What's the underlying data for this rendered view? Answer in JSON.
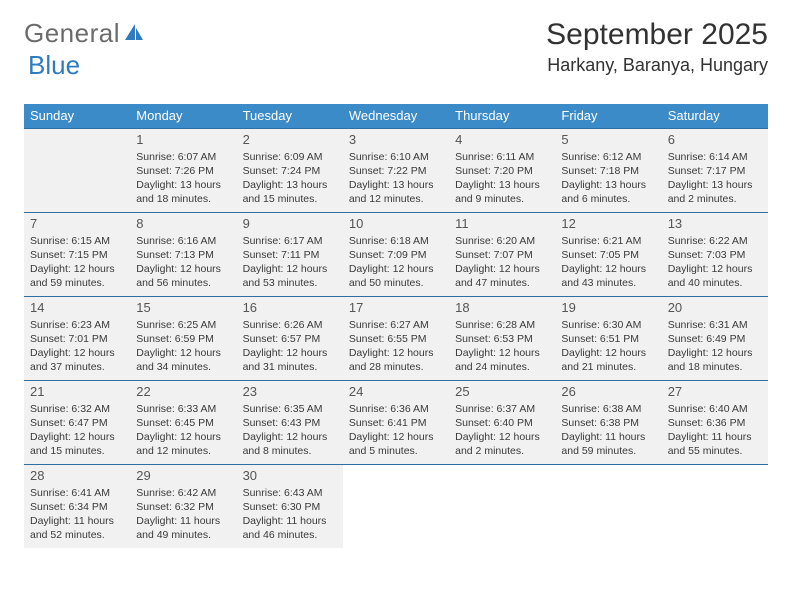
{
  "logo": {
    "part1": "General",
    "part2": "Blue"
  },
  "title": "September 2025",
  "location": "Harkany, Baranya, Hungary",
  "weekdays": [
    "Sunday",
    "Monday",
    "Tuesday",
    "Wednesday",
    "Thursday",
    "Friday",
    "Saturday"
  ],
  "colors": {
    "header_bg": "#3b8bc9",
    "header_text": "#ffffff",
    "cell_bg": "#f1f1f1",
    "rule": "#2f6ea3",
    "text": "#3a3a3a",
    "title_text": "#323232",
    "logo_gray": "#6b6b6b",
    "logo_blue": "#2f7bbf"
  },
  "weeks": [
    [
      null,
      {
        "n": "1",
        "sr": "6:07 AM",
        "ss": "7:26 PM",
        "dl": "13 hours and 18 minutes."
      },
      {
        "n": "2",
        "sr": "6:09 AM",
        "ss": "7:24 PM",
        "dl": "13 hours and 15 minutes."
      },
      {
        "n": "3",
        "sr": "6:10 AM",
        "ss": "7:22 PM",
        "dl": "13 hours and 12 minutes."
      },
      {
        "n": "4",
        "sr": "6:11 AM",
        "ss": "7:20 PM",
        "dl": "13 hours and 9 minutes."
      },
      {
        "n": "5",
        "sr": "6:12 AM",
        "ss": "7:18 PM",
        "dl": "13 hours and 6 minutes."
      },
      {
        "n": "6",
        "sr": "6:14 AM",
        "ss": "7:17 PM",
        "dl": "13 hours and 2 minutes."
      }
    ],
    [
      {
        "n": "7",
        "sr": "6:15 AM",
        "ss": "7:15 PM",
        "dl": "12 hours and 59 minutes."
      },
      {
        "n": "8",
        "sr": "6:16 AM",
        "ss": "7:13 PM",
        "dl": "12 hours and 56 minutes."
      },
      {
        "n": "9",
        "sr": "6:17 AM",
        "ss": "7:11 PM",
        "dl": "12 hours and 53 minutes."
      },
      {
        "n": "10",
        "sr": "6:18 AM",
        "ss": "7:09 PM",
        "dl": "12 hours and 50 minutes."
      },
      {
        "n": "11",
        "sr": "6:20 AM",
        "ss": "7:07 PM",
        "dl": "12 hours and 47 minutes."
      },
      {
        "n": "12",
        "sr": "6:21 AM",
        "ss": "7:05 PM",
        "dl": "12 hours and 43 minutes."
      },
      {
        "n": "13",
        "sr": "6:22 AM",
        "ss": "7:03 PM",
        "dl": "12 hours and 40 minutes."
      }
    ],
    [
      {
        "n": "14",
        "sr": "6:23 AM",
        "ss": "7:01 PM",
        "dl": "12 hours and 37 minutes."
      },
      {
        "n": "15",
        "sr": "6:25 AM",
        "ss": "6:59 PM",
        "dl": "12 hours and 34 minutes."
      },
      {
        "n": "16",
        "sr": "6:26 AM",
        "ss": "6:57 PM",
        "dl": "12 hours and 31 minutes."
      },
      {
        "n": "17",
        "sr": "6:27 AM",
        "ss": "6:55 PM",
        "dl": "12 hours and 28 minutes."
      },
      {
        "n": "18",
        "sr": "6:28 AM",
        "ss": "6:53 PM",
        "dl": "12 hours and 24 minutes."
      },
      {
        "n": "19",
        "sr": "6:30 AM",
        "ss": "6:51 PM",
        "dl": "12 hours and 21 minutes."
      },
      {
        "n": "20",
        "sr": "6:31 AM",
        "ss": "6:49 PM",
        "dl": "12 hours and 18 minutes."
      }
    ],
    [
      {
        "n": "21",
        "sr": "6:32 AM",
        "ss": "6:47 PM",
        "dl": "12 hours and 15 minutes."
      },
      {
        "n": "22",
        "sr": "6:33 AM",
        "ss": "6:45 PM",
        "dl": "12 hours and 12 minutes."
      },
      {
        "n": "23",
        "sr": "6:35 AM",
        "ss": "6:43 PM",
        "dl": "12 hours and 8 minutes."
      },
      {
        "n": "24",
        "sr": "6:36 AM",
        "ss": "6:41 PM",
        "dl": "12 hours and 5 minutes."
      },
      {
        "n": "25",
        "sr": "6:37 AM",
        "ss": "6:40 PM",
        "dl": "12 hours and 2 minutes."
      },
      {
        "n": "26",
        "sr": "6:38 AM",
        "ss": "6:38 PM",
        "dl": "11 hours and 59 minutes."
      },
      {
        "n": "27",
        "sr": "6:40 AM",
        "ss": "6:36 PM",
        "dl": "11 hours and 55 minutes."
      }
    ],
    [
      {
        "n": "28",
        "sr": "6:41 AM",
        "ss": "6:34 PM",
        "dl": "11 hours and 52 minutes."
      },
      {
        "n": "29",
        "sr": "6:42 AM",
        "ss": "6:32 PM",
        "dl": "11 hours and 49 minutes."
      },
      {
        "n": "30",
        "sr": "6:43 AM",
        "ss": "6:30 PM",
        "dl": "11 hours and 46 minutes."
      },
      "blank",
      "blank",
      "blank",
      "blank"
    ]
  ],
  "labels": {
    "sunrise": "Sunrise:",
    "sunset": "Sunset:",
    "daylight": "Daylight:"
  }
}
